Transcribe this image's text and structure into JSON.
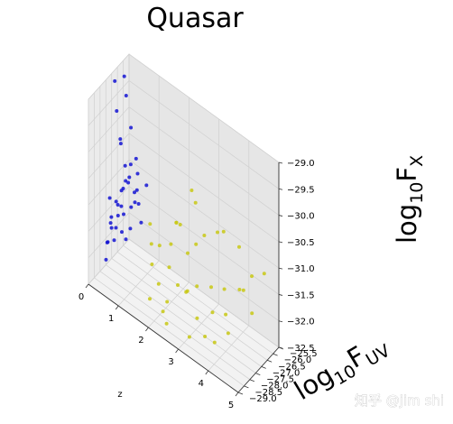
{
  "chart_data": {
    "type": "scatter",
    "projection": "3d",
    "title": "Quasar",
    "xlabel": "z",
    "ylabel": "log10FUV",
    "zlabel": "log10FX",
    "ylabel_parts": {
      "base": "log",
      "sub": "10",
      "var": "F",
      "var_sub": "UV"
    },
    "zlabel_parts": {
      "base": "log",
      "sub": "10",
      "var": "F",
      "var_sub": "X"
    },
    "xlim": [
      0,
      5
    ],
    "ylim": [
      -29.0,
      -25.5
    ],
    "zlim": [
      -32.5,
      -29.0
    ],
    "x_ticks": [
      "0",
      "1",
      "2",
      "3",
      "4",
      "5"
    ],
    "y_ticks": [
      "−29.0",
      "−28.5",
      "−28.0",
      "−27.5",
      "−27.0",
      "−26.5",
      "−26.0",
      "−25.5"
    ],
    "z_ticks": [
      "−32.5",
      "−32.0",
      "−31.5",
      "−31.0",
      "−30.5",
      "−30.0",
      "−29.5",
      "−29.0"
    ],
    "grid": true,
    "series": [
      {
        "color": "#1414d2",
        "description": "blue cluster, low redshift, high X-ray flux",
        "points": [
          [
            0.2,
            -27.6,
            -31.6
          ],
          [
            0.3,
            -27.8,
            -31.4
          ],
          [
            0.4,
            -27.5,
            -31.2
          ],
          [
            0.5,
            -27.9,
            -31.0
          ],
          [
            0.3,
            -27.4,
            -31.7
          ],
          [
            0.6,
            -27.7,
            -30.8
          ],
          [
            0.4,
            -27.2,
            -31.3
          ],
          [
            0.5,
            -27.3,
            -30.9
          ],
          [
            0.7,
            -27.6,
            -30.6
          ],
          [
            0.8,
            -27.1,
            -30.9
          ],
          [
            0.2,
            -27.9,
            -31.9
          ],
          [
            0.9,
            -27.8,
            -30.4
          ],
          [
            0.6,
            -28.0,
            -31.2
          ],
          [
            1.0,
            -27.4,
            -30.7
          ],
          [
            0.4,
            -27.0,
            -31.5
          ],
          [
            0.3,
            -28.1,
            -31.8
          ],
          [
            0.7,
            -27.2,
            -31.6
          ],
          [
            0.8,
            -27.9,
            -30.2
          ],
          [
            0.5,
            -27.5,
            -30.0
          ],
          [
            0.6,
            -26.9,
            -30.5
          ],
          [
            1.1,
            -27.6,
            -30.3
          ],
          [
            0.2,
            -27.3,
            -32.0
          ],
          [
            0.9,
            -27.0,
            -31.1
          ],
          [
            0.4,
            -28.2,
            -30.9
          ],
          [
            0.6,
            -27.8,
            -29.8
          ],
          [
            0.7,
            -26.8,
            -31.2
          ],
          [
            0.3,
            -26.9,
            -31.9
          ],
          [
            1.0,
            -27.9,
            -30.9
          ],
          [
            0.5,
            -28.3,
            -31.4
          ],
          [
            0.8,
            -27.4,
            -29.6
          ],
          [
            0.4,
            -27.6,
            -29.4
          ],
          [
            0.6,
            -27.3,
            -29.1
          ],
          [
            0.3,
            -27.5,
            -28.9
          ],
          [
            0.5,
            -27.2,
            -28.8
          ],
          [
            1.2,
            -27.1,
            -30.6
          ],
          [
            0.2,
            -28.0,
            -32.2
          ],
          [
            0.9,
            -28.1,
            -31.5
          ],
          [
            0.7,
            -26.7,
            -30.4
          ],
          [
            1.1,
            -27.3,
            -31.3
          ],
          [
            0.4,
            -26.6,
            -31.0
          ]
        ]
      },
      {
        "color": "#c8c814",
        "description": "yellow cluster, higher redshift, lower X-ray flux",
        "points": [
          [
            1.5,
            -27.4,
            -31.9
          ],
          [
            1.8,
            -27.6,
            -32.1
          ],
          [
            2.0,
            -27.2,
            -31.8
          ],
          [
            2.2,
            -27.9,
            -32.2
          ],
          [
            1.6,
            -27.0,
            -31.6
          ],
          [
            2.4,
            -27.5,
            -31.9
          ],
          [
            2.6,
            -27.3,
            -32.0
          ],
          [
            2.1,
            -28.0,
            -32.4
          ],
          [
            2.8,
            -27.7,
            -31.8
          ],
          [
            3.0,
            -27.4,
            -31.7
          ],
          [
            1.9,
            -26.8,
            -31.5
          ],
          [
            3.2,
            -27.9,
            -32.1
          ],
          [
            2.5,
            -26.9,
            -31.4
          ],
          [
            3.4,
            -27.2,
            -31.6
          ],
          [
            2.3,
            -28.2,
            -32.5
          ],
          [
            3.6,
            -27.6,
            -31.9
          ],
          [
            2.7,
            -26.7,
            -31.2
          ],
          [
            3.8,
            -27.1,
            -31.5
          ],
          [
            1.7,
            -28.1,
            -32.3
          ],
          [
            4.0,
            -27.5,
            -31.8
          ],
          [
            2.9,
            -26.5,
            -31.0
          ],
          [
            4.2,
            -27.8,
            -32.0
          ],
          [
            3.1,
            -28.3,
            -32.4
          ],
          [
            4.4,
            -27.0,
            -31.3
          ],
          [
            2.0,
            -26.6,
            -31.1
          ],
          [
            4.6,
            -26.8,
            -31.0
          ],
          [
            3.3,
            -26.4,
            -30.8
          ],
          [
            4.8,
            -27.3,
            -31.5
          ],
          [
            2.2,
            -27.1,
            -30.9
          ],
          [
            3.5,
            -28.0,
            -32.3
          ],
          [
            4.1,
            -26.6,
            -30.7
          ],
          [
            2.6,
            -27.8,
            -30.6
          ],
          [
            1.4,
            -27.3,
            -31.2
          ],
          [
            3.7,
            -26.9,
            -30.5
          ],
          [
            4.5,
            -27.6,
            -31.1
          ],
          [
            2.4,
            -26.3,
            -30.4
          ],
          [
            3.9,
            -28.2,
            -32.2
          ],
          [
            1.6,
            -27.7,
            -31.4
          ],
          [
            4.9,
            -26.5,
            -30.9
          ],
          [
            2.8,
            -27.0,
            -30.3
          ]
        ]
      }
    ]
  },
  "watermark": "知乎 @jim shi"
}
